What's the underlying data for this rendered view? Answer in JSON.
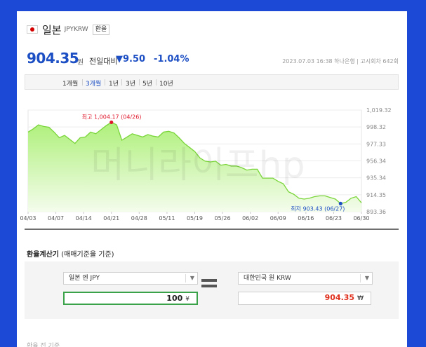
{
  "header": {
    "currency_name": "일본",
    "currency_code": "JPYKRW",
    "exchange_button": "환율"
  },
  "price": {
    "value": "904.35",
    "unit": "원",
    "change_label": "전일대비",
    "change_value": "▼9.50",
    "change_pct": "-1.04%",
    "meta": "2023.07.03 16:38 하나은행 | 고시회차 642회"
  },
  "tabs": [
    {
      "label": "1개월",
      "active": false
    },
    {
      "label": "3개월",
      "active": true
    },
    {
      "label": "1년",
      "active": false
    },
    {
      "label": "3년",
      "active": false
    },
    {
      "label": "5년",
      "active": false
    },
    {
      "label": "10년",
      "active": false
    }
  ],
  "chart_data": {
    "type": "area",
    "title": "",
    "xlabel": "",
    "ylabel": "",
    "ylim": [
      893.36,
      1019.32
    ],
    "y_ticks": [
      "1,019.32",
      "998.32",
      "977.33",
      "956.34",
      "935.34",
      "914.35",
      "893.36"
    ],
    "x_ticks": [
      "04/03",
      "04/07",
      "04/14",
      "04/21",
      "04/28",
      "05/11",
      "05/19",
      "05/26",
      "06/02",
      "06/09",
      "06/16",
      "06/23",
      "06/30"
    ],
    "series": [
      {
        "values": [
          992,
          996,
          1001,
          999,
          998,
          992,
          985,
          988,
          983,
          978,
          985,
          986,
          992,
          990,
          995,
          1000,
          1004.17,
          1001,
          982,
          986,
          990,
          988,
          986,
          989,
          987,
          986,
          992,
          993,
          991,
          985,
          978,
          973,
          968,
          960,
          956,
          955,
          956,
          951,
          952,
          950,
          950,
          948,
          945,
          946,
          946,
          935,
          935,
          935,
          931,
          928,
          918,
          915,
          910,
          909,
          910,
          912,
          913,
          913,
          911,
          909,
          903.43,
          905,
          910,
          912,
          904.35
        ]
      }
    ],
    "annotations": {
      "high_label": "최고 1,004.17 (04/26)",
      "low_label": "최저 903.43 (06/27)"
    },
    "watermark": "머니라이프hp",
    "colors": {
      "line": "#7ad53a",
      "fill_top": "#aef07a",
      "fill_bottom": "#f4fcec",
      "high": "#e0182d",
      "low": "#1d4fc4"
    }
  },
  "calculator": {
    "title": "환율계산기",
    "subtitle": "(매매기준율 기준)",
    "from_currency": "일본 엔 JPY",
    "to_currency": "대한민국 원 KRW",
    "from_amount": "100",
    "from_unit": "¥",
    "to_amount": "904.35",
    "to_unit": "₩",
    "select_arrow": "▼"
  },
  "cutoff_text": "환율 전 기준"
}
